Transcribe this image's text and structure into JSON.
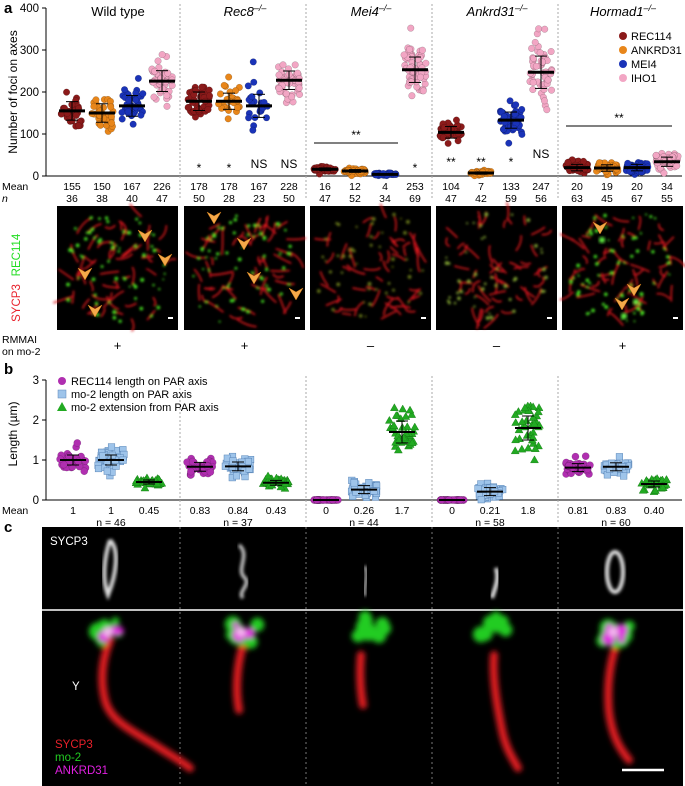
{
  "panel_a": {
    "letter": "a",
    "genotypes": [
      {
        "name": "Wild type",
        "italic": false
      },
      {
        "name": "Rec8",
        "sup": "–/–",
        "italic": true
      },
      {
        "name": "Mei4",
        "sup": "–/–",
        "italic": true
      },
      {
        "name": "Ankrd31",
        "sup": "–/–",
        "italic": true
      },
      {
        "name": "Hormad1",
        "sup": "–/–",
        "italic": true
      }
    ],
    "ylabel": "Number of foci on axes",
    "mean_label": "Mean",
    "n_label": "n",
    "rmmai_label": [
      "RMMAI",
      "on mo-2"
    ],
    "rmmai": [
      "+",
      "+",
      "–",
      "–",
      "+"
    ],
    "double_star": "**",
    "micrograph_labels": {
      "top": "REC114",
      "bottom": "SYCP3"
    },
    "colors": {
      "REC114": "#8b1a1a",
      "ANKRD31": "#e8861a",
      "MEI4": "#1a33b8",
      "IHO1": "#f2a6c4"
    },
    "chart_data": {
      "type": "scatter",
      "ylim": [
        0,
        400
      ],
      "yticks": [
        0,
        100,
        200,
        300,
        400
      ],
      "series_names": [
        "REC114",
        "ANKRD31",
        "MEI4",
        "IHO1"
      ],
      "groups": [
        {
          "genotype": "Wild type",
          "means": [
            155,
            150,
            167,
            226
          ],
          "n": [
            36,
            38,
            40,
            47
          ],
          "sig": [
            "",
            "",
            "",
            ""
          ],
          "spread": [
            40,
            40,
            45,
            45
          ]
        },
        {
          "genotype": "Rec8",
          "means": [
            178,
            178,
            167,
            228
          ],
          "n": [
            50,
            28,
            23,
            50
          ],
          "sig": [
            "*",
            "*",
            "NS",
            "NS"
          ],
          "spread": [
            40,
            35,
            50,
            40
          ]
        },
        {
          "genotype": "Mei4",
          "means": [
            16,
            12,
            4,
            253
          ],
          "n": [
            47,
            52,
            34,
            69
          ],
          "sig": [
            "",
            "",
            "",
            "*"
          ],
          "spread": [
            6,
            6,
            3,
            55
          ]
        },
        {
          "genotype": "Ankrd31",
          "means": [
            104,
            7,
            133,
            247
          ],
          "n": [
            47,
            42,
            59,
            56
          ],
          "sig": [
            "**",
            "**",
            "*",
            "NS"
          ],
          "spread": [
            25,
            5,
            35,
            70
          ]
        },
        {
          "genotype": "Hormad1",
          "means": [
            20,
            19,
            20,
            34
          ],
          "n": [
            63,
            45,
            67,
            55
          ],
          "sig": [
            "",
            "",
            "",
            ""
          ],
          "spread": [
            14,
            14,
            14,
            20
          ]
        }
      ]
    }
  },
  "panel_b": {
    "letter": "b",
    "ylabel": "Length (µm)",
    "mean_label": "Mean",
    "legend": [
      {
        "label": "REC114 length on PAR axis",
        "color": "#b02fb0",
        "shape": "circle"
      },
      {
        "label": "mo-2 length on PAR axis",
        "color": "#9ec4ea",
        "shape": "square"
      },
      {
        "label": "mo-2 extension from PAR axis",
        "color": "#22aa22",
        "shape": "triangle"
      }
    ],
    "chart_data": {
      "type": "scatter",
      "ylim": [
        0,
        3
      ],
      "yticks": [
        0,
        1,
        2,
        3
      ],
      "series_names": [
        "REC114 length on PAR axis",
        "mo-2 length on PAR axis",
        "mo-2 extension from PAR axis"
      ],
      "groups": [
        {
          "genotype": "Wild type",
          "means": [
            "1",
            "1",
            "0.45"
          ],
          "n_text": "n = 46",
          "values": [
            1,
            1,
            0.45
          ],
          "spread": [
            0.25,
            0.25,
            0.1
          ]
        },
        {
          "genotype": "Rec8",
          "means": [
            "0.83",
            "0.84",
            "0.43"
          ],
          "n_text": "n = 37",
          "values": [
            0.83,
            0.84,
            0.43
          ],
          "spread": [
            0.22,
            0.22,
            0.12
          ]
        },
        {
          "genotype": "Mei4",
          "means": [
            "0",
            "0.26",
            "1.7"
          ],
          "n_text": "n = 44",
          "values": [
            0,
            0.26,
            1.7
          ],
          "spread": [
            0,
            0.2,
            0.55
          ]
        },
        {
          "genotype": "Ankrd31",
          "means": [
            "0",
            "0.21",
            "1.8"
          ],
          "n_text": "n = 58",
          "values": [
            0,
            0.21,
            1.8
          ],
          "spread": [
            0,
            0.2,
            0.6
          ]
        },
        {
          "genotype": "Hormad1",
          "means": [
            "0.81",
            "0.83",
            "0.40"
          ],
          "n_text": "n = 60",
          "values": [
            0.81,
            0.83,
            0.4
          ],
          "spread": [
            0.2,
            0.2,
            0.15
          ]
        }
      ]
    }
  },
  "panel_c": {
    "letter": "c",
    "top_label": "SYCP3",
    "y_label": "Y",
    "legend": [
      {
        "label": "SYCP3",
        "color": "#e8202a"
      },
      {
        "label": "mo-2",
        "color": "#22cc22"
      },
      {
        "label": "ANKRD31",
        "color": "#e020e0"
      }
    ]
  }
}
